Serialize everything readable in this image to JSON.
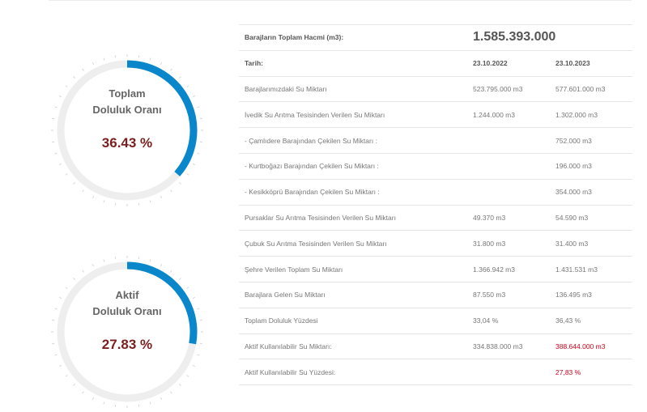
{
  "gauges": [
    {
      "label_line1": "Toplam",
      "label_line2": "Doluluk Oranı",
      "value_text": "36.43 %",
      "percent": 36.43
    },
    {
      "label_line1": "Aktif",
      "label_line2": "Doluluk Oranı",
      "value_text": "27.83 %",
      "percent": 27.83
    }
  ],
  "colors": {
    "arc": "#0a87cb",
    "track": "#eeeeee",
    "value": "#7a1f1f",
    "highlight": "#d0021b"
  },
  "table": {
    "total_label": "Barajların Toplam Hacmi (m3):",
    "total_value": "1.585.393.000",
    "date_label": "Tarih:",
    "date1": "23.10.2022",
    "date2": "23.10.2023",
    "rows": [
      {
        "label": "Barajlarımızdaki Su Miktarı",
        "v1": "523.795.000 m3",
        "v2": "577.601.000 m3"
      },
      {
        "label": "İvedik Su Arıtma Tesisinden Verilen Su Miktarı",
        "v1": "1.244.000 m3",
        "v2": "1.302.000 m3"
      },
      {
        "label": "- Çamlıdere Barajından Çekilen Su Miktarı :",
        "v1": "",
        "v2": "752.000 m3"
      },
      {
        "label": "- Kurtboğazı Barajından Çekilen Su Miktarı :",
        "v1": "",
        "v2": "196.000 m3"
      },
      {
        "label": "- Kesikköprü Barajından Çekilen Su Miktarı :",
        "v1": "",
        "v2": "354.000 m3"
      },
      {
        "label": "Pursaklar Su Arıtma Tesisinden Verilen Su Miktarı",
        "v1": "49.370 m3",
        "v2": "54.590 m3"
      },
      {
        "label": "Çubuk Su Arıtma Tesisinden Verilen Su Miktarı",
        "v1": "31.800 m3",
        "v2": "31.400 m3"
      },
      {
        "label": "Şehre Verilen Toplam Su Miktarı",
        "v1": "1.366.942 m3",
        "v2": "1.431.531 m3"
      },
      {
        "label": "Barajlara Gelen Su Miktarı",
        "v1": "87.550 m3",
        "v2": "136.495 m3"
      },
      {
        "label": "Toplam Doluluk Yüzdesi",
        "v1": "33,04 %",
        "v2": "36,43 %"
      },
      {
        "label": "Aktif Kullanılabilir Su Miktarı:",
        "v1": "334.838.000 m3",
        "v2": "388.644.000 m3"
      },
      {
        "label": "Aktif Kullanılabilir Su Yüzdesi:",
        "v1": "",
        "v2": "27,83 %"
      }
    ]
  }
}
